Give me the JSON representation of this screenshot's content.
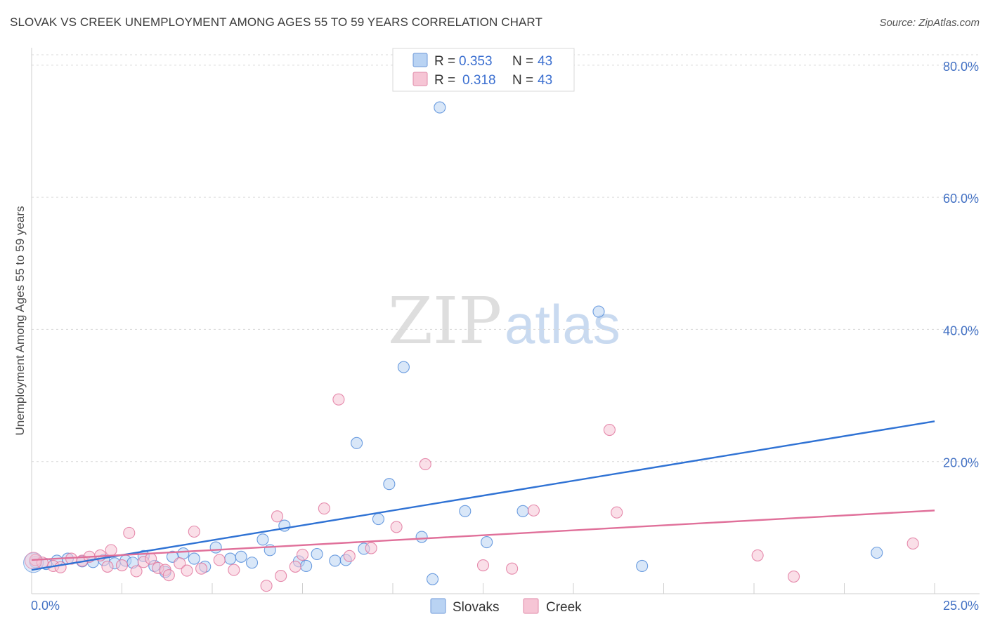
{
  "header": {
    "title": "SLOVAK VS CREEK UNEMPLOYMENT AMONG AGES 55 TO 59 YEARS CORRELATION CHART",
    "source": "Source: ZipAtlas.com"
  },
  "colors": {
    "slovaks": "#4a86d8",
    "slovaks_fill": "#b9d3f3",
    "creek": "#e0709a",
    "creek_fill": "#f6c5d5",
    "tick": "#4472c4",
    "grid": "#d9d9d9"
  },
  "legend": {
    "r_label": "R =",
    "n_label": "N =",
    "rows": [
      {
        "r": "0.353",
        "n": "43"
      },
      {
        "r": "0.318",
        "n": "43"
      }
    ]
  },
  "bottom_legend": [
    "Slovaks",
    "Creek"
  ],
  "watermark": {
    "zip": "ZIP",
    "atlas": "atlas"
  },
  "chart_data": {
    "type": "scatter",
    "title": "SLOVAK VS CREEK UNEMPLOYMENT AMONG AGES 55 TO 59 YEARS CORRELATION CHART",
    "xlabel": "",
    "ylabel": "Unemployment Among Ages 55 to 59 years",
    "xlim": [
      0,
      25
    ],
    "ylim": [
      0,
      82
    ],
    "x_tick_labels": [
      "0.0%",
      "25.0%"
    ],
    "y_ticks": [
      20,
      40,
      60,
      80
    ],
    "y_tick_labels": [
      "20.0%",
      "40.0%",
      "60.0%",
      "80.0%"
    ],
    "grid": true,
    "legend_position": "top-center",
    "series": [
      {
        "name": "Slovaks",
        "r": 0.353,
        "n": 43,
        "trend": {
          "x": [
            0,
            25
          ],
          "y": [
            3.6,
            26.1
          ]
        },
        "points": [
          [
            0.1,
            4.8
          ],
          [
            0.4,
            4.5
          ],
          [
            0.7,
            5.0
          ],
          [
            1.0,
            5.3
          ],
          [
            1.4,
            4.9
          ],
          [
            1.7,
            4.8
          ],
          [
            2.0,
            5.1
          ],
          [
            2.3,
            4.6
          ],
          [
            2.6,
            5.0
          ],
          [
            2.8,
            4.7
          ],
          [
            3.1,
            5.7
          ],
          [
            3.4,
            4.2
          ],
          [
            3.7,
            3.3
          ],
          [
            3.9,
            5.6
          ],
          [
            4.2,
            6.1
          ],
          [
            4.5,
            5.3
          ],
          [
            4.8,
            4.1
          ],
          [
            5.1,
            7.0
          ],
          [
            5.5,
            5.3
          ],
          [
            5.8,
            5.6
          ],
          [
            6.1,
            4.7
          ],
          [
            6.4,
            8.2
          ],
          [
            6.6,
            6.6
          ],
          [
            7.0,
            10.3
          ],
          [
            7.4,
            4.9
          ],
          [
            7.6,
            4.2
          ],
          [
            7.9,
            6.0
          ],
          [
            8.4,
            5.0
          ],
          [
            8.7,
            5.1
          ],
          [
            9.0,
            22.8
          ],
          [
            9.2,
            6.8
          ],
          [
            9.6,
            11.3
          ],
          [
            9.9,
            16.6
          ],
          [
            10.3,
            34.3
          ],
          [
            10.8,
            8.6
          ],
          [
            11.1,
            2.2
          ],
          [
            11.3,
            73.6
          ],
          [
            12.0,
            12.5
          ],
          [
            12.6,
            7.8
          ],
          [
            13.6,
            12.5
          ],
          [
            15.7,
            42.7
          ],
          [
            16.9,
            4.2
          ],
          [
            23.4,
            6.2
          ]
        ]
      },
      {
        "name": "Creek",
        "r": 0.318,
        "n": 43,
        "trend": {
          "x": [
            0,
            25
          ],
          "y": [
            5.1,
            12.6
          ]
        },
        "points": [
          [
            0.1,
            5.1
          ],
          [
            0.3,
            4.7
          ],
          [
            0.6,
            4.2
          ],
          [
            0.8,
            4.0
          ],
          [
            1.1,
            5.3
          ],
          [
            1.4,
            5.0
          ],
          [
            1.6,
            5.6
          ],
          [
            1.9,
            5.8
          ],
          [
            2.1,
            4.1
          ],
          [
            2.2,
            6.6
          ],
          [
            2.5,
            4.3
          ],
          [
            2.7,
            9.2
          ],
          [
            2.9,
            3.4
          ],
          [
            3.1,
            4.8
          ],
          [
            3.3,
            5.3
          ],
          [
            3.5,
            3.9
          ],
          [
            3.7,
            3.6
          ],
          [
            3.8,
            2.8
          ],
          [
            4.1,
            4.6
          ],
          [
            4.3,
            3.5
          ],
          [
            4.5,
            9.4
          ],
          [
            4.7,
            3.8
          ],
          [
            5.2,
            5.1
          ],
          [
            5.6,
            3.6
          ],
          [
            6.5,
            1.2
          ],
          [
            6.8,
            11.7
          ],
          [
            6.9,
            2.7
          ],
          [
            7.3,
            4.1
          ],
          [
            7.5,
            5.9
          ],
          [
            8.1,
            12.9
          ],
          [
            8.5,
            29.4
          ],
          [
            8.8,
            5.7
          ],
          [
            9.4,
            6.9
          ],
          [
            10.1,
            10.1
          ],
          [
            10.9,
            19.6
          ],
          [
            12.5,
            4.3
          ],
          [
            13.3,
            3.8
          ],
          [
            13.9,
            12.6
          ],
          [
            16.0,
            24.8
          ],
          [
            16.2,
            12.3
          ],
          [
            20.1,
            5.8
          ],
          [
            21.1,
            2.6
          ],
          [
            24.4,
            7.6
          ]
        ]
      }
    ]
  }
}
